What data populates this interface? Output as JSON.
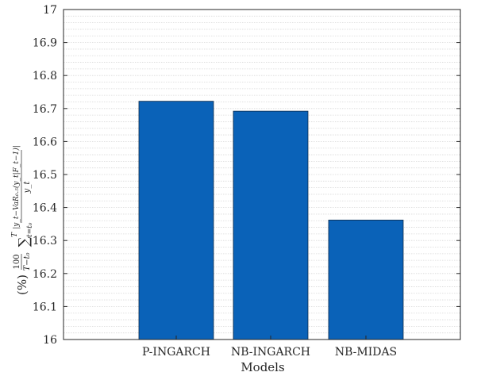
{
  "chart_data": {
    "type": "bar",
    "categories": [
      "P-INGARCH",
      "NB-INGARCH",
      "NB-MIDAS"
    ],
    "values": [
      16.722,
      16.692,
      16.362
    ],
    "xlabel": "Models",
    "ylabel": "(%) 100/(T−t₀) Σ_{t=t₀}^{T} |y_t − VaR₀.₅(y_t|F_{t−1})| / y_t",
    "ylim": [
      16,
      17
    ],
    "yticks": [
      16,
      16.1,
      16.2,
      16.3,
      16.4,
      16.5,
      16.6,
      16.7,
      16.8,
      16.9,
      17
    ],
    "ytick_labels": [
      "16",
      "16.1",
      "16.2",
      "16.3",
      "16.4",
      "16.5",
      "16.6",
      "16.7",
      "16.8",
      "16.9",
      "17"
    ],
    "grid": true,
    "bar_color": "#0a62b8"
  }
}
